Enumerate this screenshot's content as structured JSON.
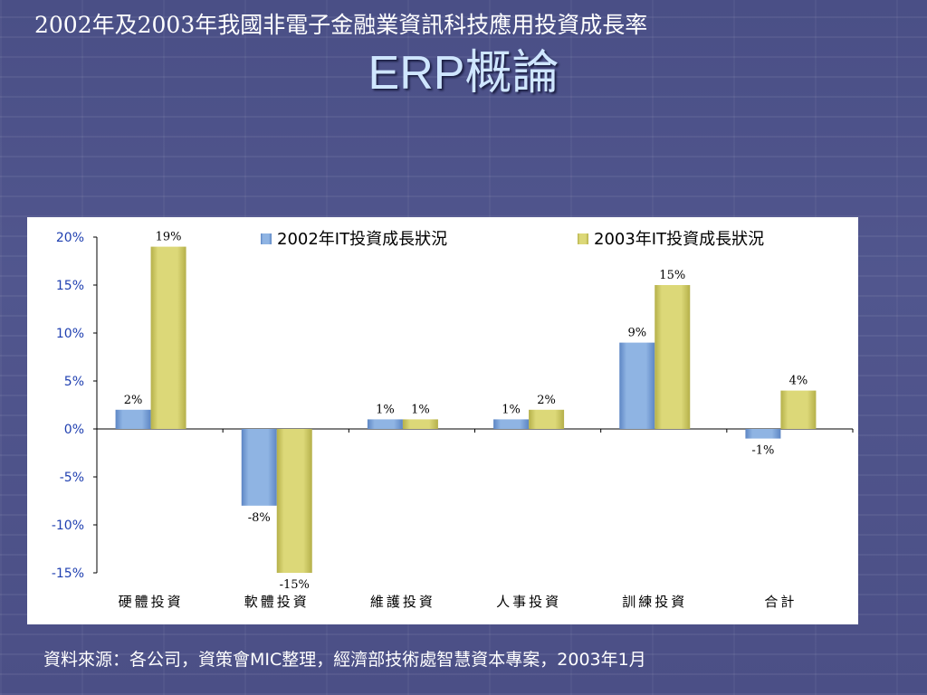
{
  "slide": {
    "subtitle": "2002年及2003年我國非電子金融業資訊科技應用投資成長率",
    "title": "ERP概論",
    "source": "資料來源：各公司，資策會MIC整理，經濟部技術處智慧資本專案，2003年1月"
  },
  "chart_data": {
    "type": "bar",
    "categories": [
      "硬體投資",
      "軟體投資",
      "維護投資",
      "人事投資",
      "訓練投資",
      "合計"
    ],
    "series": [
      {
        "name": "2002年IT投資成長狀況",
        "values": [
          2,
          -8,
          1,
          1,
          9,
          -1
        ],
        "labels": [
          "2%",
          "-8%",
          "1%",
          "1%",
          "9%",
          "-1%"
        ],
        "color": "#8fb4e3"
      },
      {
        "name": "2003年IT投資成長狀況",
        "values": [
          19,
          -15,
          1,
          2,
          15,
          4
        ],
        "labels": [
          "19%",
          "-15%",
          "1%",
          "2%",
          "15%",
          "4%"
        ],
        "color": "#dcd878"
      }
    ],
    "ylim": [
      -15,
      20
    ],
    "yticks": [
      20,
      15,
      10,
      5,
      0,
      -5,
      -10,
      -15
    ],
    "ytick_labels": [
      "20%",
      "15%",
      "10%",
      "5%",
      "0%",
      "-5%",
      "-10%",
      "-15%"
    ],
    "legend": "top",
    "grid": false
  }
}
